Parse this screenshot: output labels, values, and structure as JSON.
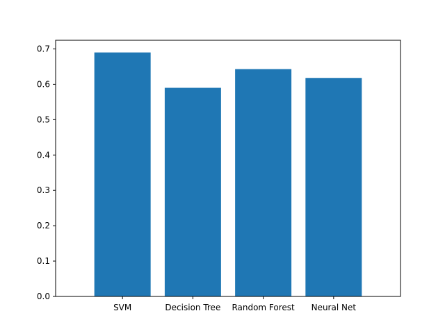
{
  "chart_data": {
    "type": "bar",
    "title": "",
    "xlabel": "",
    "ylabel": "",
    "categories": [
      "SVM",
      "Decision Tree",
      "Random Forest",
      "Neural Net"
    ],
    "values": [
      0.69,
      0.59,
      0.643,
      0.618
    ],
    "ylim": [
      0,
      0.7245
    ],
    "yticks": [
      0.0,
      0.1,
      0.2,
      0.3,
      0.4,
      0.5,
      0.6,
      0.7
    ],
    "ytick_labels": [
      "0.0",
      "0.1",
      "0.2",
      "0.3",
      "0.4",
      "0.5",
      "0.6",
      "0.7"
    ],
    "bar_color": "#1f77b4",
    "grid": false,
    "legend": "none"
  }
}
